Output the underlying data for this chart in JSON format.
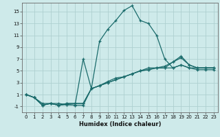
{
  "title": "",
  "xlabel": "Humidex (Indice chaleur)",
  "ylabel": "",
  "bg_color": "#ceeaea",
  "line_color": "#1a6b6b",
  "grid_color": "#aed0d0",
  "xlim": [
    -0.5,
    23.5
  ],
  "ylim": [
    -2,
    16.5
  ],
  "yticks": [
    -1,
    1,
    3,
    5,
    7,
    9,
    11,
    13,
    15
  ],
  "xticks": [
    0,
    1,
    2,
    3,
    4,
    5,
    6,
    7,
    8,
    9,
    10,
    11,
    12,
    13,
    14,
    15,
    16,
    17,
    18,
    19,
    20,
    21,
    22,
    23
  ],
  "series": [
    [
      1,
      0.5,
      -0.5,
      -0.5,
      -0.5,
      -0.7,
      -0.8,
      7.0,
      2.0,
      10.0,
      12.0,
      13.5,
      15.2,
      16.0,
      13.5,
      13.0,
      11.0,
      7.0,
      5.5,
      6.0,
      5.5,
      5.2,
      5.2,
      5.2
    ],
    [
      1,
      0.5,
      -0.8,
      -0.5,
      -0.8,
      -0.7,
      -0.8,
      -0.8,
      2.0,
      2.5,
      3.0,
      3.5,
      4.0,
      4.5,
      5.0,
      5.5,
      5.5,
      5.5,
      5.5,
      6.0,
      5.5,
      5.5,
      5.5,
      5.5
    ],
    [
      1,
      0.5,
      -0.8,
      -0.5,
      -0.8,
      -0.5,
      -0.5,
      -0.5,
      2.0,
      2.5,
      3.2,
      3.8,
      4.0,
      4.5,
      5.0,
      5.2,
      5.5,
      5.8,
      6.5,
      7.5,
      6.0,
      5.5,
      5.5,
      5.5
    ],
    [
      1,
      0.5,
      -0.8,
      -0.5,
      -0.8,
      -0.5,
      -0.5,
      -0.5,
      2.0,
      2.5,
      3.0,
      3.5,
      4.0,
      4.5,
      5.0,
      5.2,
      5.5,
      5.5,
      6.5,
      7.2,
      6.0,
      5.5,
      5.5,
      5.5
    ]
  ]
}
